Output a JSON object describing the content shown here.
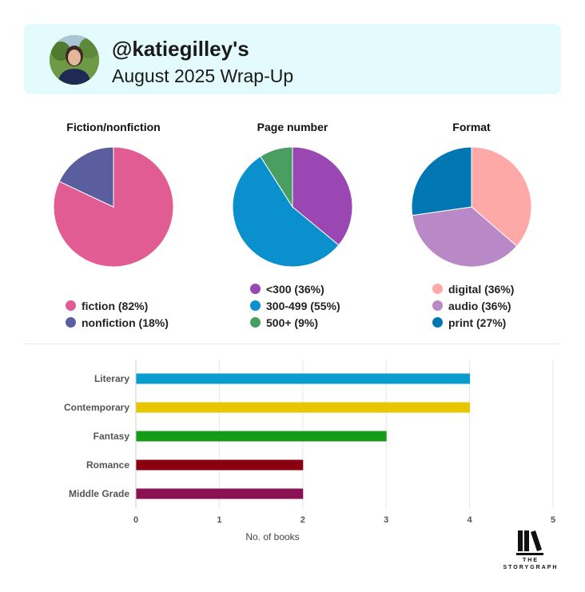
{
  "header": {
    "username": "@katiegilley's",
    "subtitle": "August 2025 Wrap-Up"
  },
  "chart_data": [
    {
      "type": "pie",
      "title": "Fiction/nonfiction",
      "slices": [
        {
          "label": "fiction (82%)",
          "value": 82,
          "color": "#e05c93"
        },
        {
          "label": "nonfiction (18%)",
          "value": 18,
          "color": "#5b5e9e"
        }
      ]
    },
    {
      "type": "pie",
      "title": "Page number",
      "slices": [
        {
          "label": "<300 (36%)",
          "value": 36,
          "color": "#9a47b3"
        },
        {
          "label": "300-499 (55%)",
          "value": 55,
          "color": "#0a90cc"
        },
        {
          "label": "500+ (9%)",
          "value": 9,
          "color": "#4a9e62"
        }
      ]
    },
    {
      "type": "pie",
      "title": "Format",
      "slices": [
        {
          "label": "digital (36%)",
          "value": 36,
          "color": "#ffa8a8"
        },
        {
          "label": "audio (36%)",
          "value": 36,
          "color": "#b889c6"
        },
        {
          "label": "print (27%)",
          "value": 27,
          "color": "#0077b3"
        }
      ]
    },
    {
      "type": "bar",
      "orientation": "horizontal",
      "categories": [
        "Literary",
        "Contemporary",
        "Fantasy",
        "Romance",
        "Middle Grade"
      ],
      "values": [
        4,
        4,
        3,
        2,
        2
      ],
      "colors": [
        "#0a9ccf",
        "#e6c700",
        "#149c19",
        "#8a0010",
        "#8b1252"
      ],
      "xlabel": "No. of books",
      "xlim": [
        0,
        5
      ],
      "xticks": [
        "0",
        "1",
        "2",
        "3",
        "4",
        "5"
      ],
      "grid": true
    }
  ],
  "logo": {
    "line1": "THE",
    "line2": "STORYGRAPH"
  }
}
